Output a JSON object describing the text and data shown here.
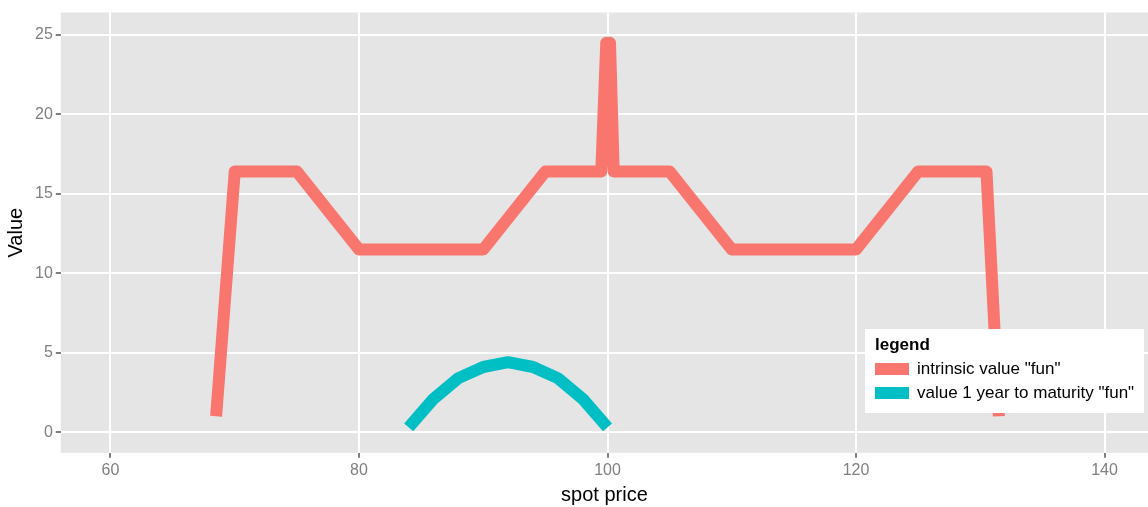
{
  "chart_data": {
    "type": "line",
    "xlabel": "spot price",
    "ylabel": "Value",
    "legend_title": "legend",
    "legend": "bottom right",
    "grid": true,
    "marker": "none",
    "line_style": "solid",
    "xlim": [
      56,
      143.5
    ],
    "xticks": [
      60,
      80,
      100,
      120,
      140
    ],
    "ylim": [
      -1.3,
      26.4
    ],
    "yticks": [
      0,
      5,
      10,
      15,
      20,
      25
    ],
    "series": [
      {
        "name": "intrinsic value \"fun\"",
        "color": "#f8766d",
        "x": [
          68.5,
          70,
          75,
          80,
          90,
          95,
          99.5,
          99.9,
          100.2,
          100.5,
          105,
          110,
          120,
          125,
          130.5,
          131.5
        ],
        "values": [
          1,
          16.4,
          16.4,
          11.5,
          11.5,
          16.4,
          16.4,
          24.5,
          24.5,
          16.4,
          16.4,
          11.5,
          11.5,
          16.4,
          16.4,
          1
        ]
      },
      {
        "name": "value 1 year to maturity \"fun\"",
        "color": "#00bfc4",
        "x": [
          84,
          86,
          88,
          90,
          92,
          94,
          96,
          98,
          100
        ],
        "values": [
          0.3,
          2.1,
          3.4,
          4.1,
          4.4,
          4.1,
          3.4,
          2.1,
          0.3
        ]
      }
    ]
  }
}
